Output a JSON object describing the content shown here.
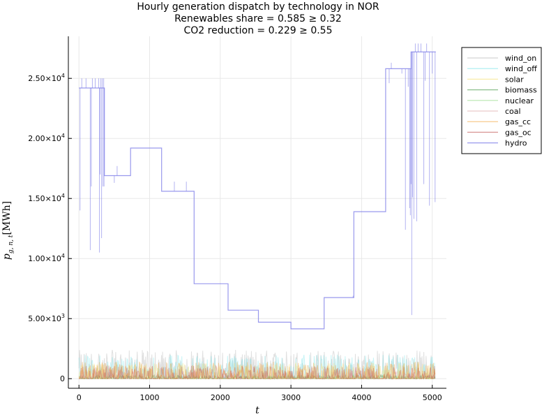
{
  "chart_data": {
    "type": "line",
    "title": [
      "Hourly generation dispatch by technology in NOR",
      "Renewables share = 0.585 ≥ 0.32",
      "CO2 reduction = 0.229 ≥ 0.55"
    ],
    "xlabel": "t",
    "ylabel_main": "p",
    "ylabel_sub": "g, n, t",
    "ylabel_unit": "[MWh]",
    "xlim": [
      -150,
      5200
    ],
    "ylim": [
      -800,
      28500
    ],
    "xticks": [
      0,
      1000,
      2000,
      3000,
      4000,
      5000
    ],
    "xtick_labels": [
      "0",
      "1000",
      "2000",
      "3000",
      "4000",
      "5000"
    ],
    "yticks": [
      0,
      5000,
      10000,
      15000,
      20000,
      25000
    ],
    "ytick_labels": [
      {
        "base": "0",
        "exp": ""
      },
      {
        "base": "5.00×10",
        "exp": "3"
      },
      {
        "base": "1.00×10",
        "exp": "4"
      },
      {
        "base": "1.50×10",
        "exp": "4"
      },
      {
        "base": "2.00×10",
        "exp": "4"
      },
      {
        "base": "2.50×10",
        "exp": "4"
      }
    ],
    "grid": true,
    "legend_position": "outer-top-right",
    "series": [
      {
        "name": "wind_on",
        "color": "#c7c7c7",
        "opacity": 0.55,
        "kind": "noise",
        "base": 200,
        "amp": 2200,
        "max": 2500
      },
      {
        "name": "wind_off",
        "color": "#5fe0e6",
        "opacity": 0.35,
        "kind": "noise",
        "base": 100,
        "amp": 1900,
        "max": 2300
      },
      {
        "name": "solar",
        "color": "#f5e07a",
        "opacity": 0.45,
        "kind": "noise",
        "base": 0,
        "amp": 1300,
        "max": 1500
      },
      {
        "name": "biomass",
        "color": "#2e8b2e",
        "opacity": 0.35,
        "kind": "noise",
        "base": 0,
        "amp": 300,
        "max": 400
      },
      {
        "name": "nuclear",
        "color": "#7fd36b",
        "opacity": 0.35,
        "kind": "noise",
        "base": 0,
        "amp": 200,
        "max": 250
      },
      {
        "name": "coal",
        "color": "#d9a0a0",
        "opacity": 0.35,
        "kind": "noise",
        "base": 0,
        "amp": 600,
        "max": 800
      },
      {
        "name": "gas_cc",
        "color": "#f2a43a",
        "opacity": 0.45,
        "kind": "noise",
        "base": 0,
        "amp": 1400,
        "max": 1600
      },
      {
        "name": "gas_oc",
        "color": "#c0504d",
        "opacity": 0.4,
        "kind": "noise",
        "base": 0,
        "amp": 1100,
        "max": 1200
      },
      {
        "name": "hydro",
        "color": "#8080e8",
        "opacity": 0.6,
        "kind": "steps",
        "steps": [
          {
            "x0": 0,
            "x1": 360,
            "y": 24200
          },
          {
            "x0": 360,
            "x1": 730,
            "y": 16900
          },
          {
            "x0": 730,
            "x1": 1170,
            "y": 19200
          },
          {
            "x0": 1170,
            "x1": 1630,
            "y": 15600
          },
          {
            "x0": 1630,
            "x1": 2110,
            "y": 7900
          },
          {
            "x0": 2110,
            "x1": 2540,
            "y": 5700
          },
          {
            "x0": 2540,
            "x1": 3000,
            "y": 4700
          },
          {
            "x0": 3000,
            "x1": 3470,
            "y": 4150
          },
          {
            "x0": 3470,
            "x1": 3890,
            "y": 6750
          },
          {
            "x0": 3890,
            "x1": 4340,
            "y": 13900
          },
          {
            "x0": 4340,
            "x1": 4700,
            "y": 25800
          },
          {
            "x0": 4700,
            "x1": 5050,
            "y": 27200
          }
        ],
        "spikes": [
          [
            15,
            14000
          ],
          [
            40,
            25000
          ],
          [
            100,
            25000
          ],
          [
            160,
            10700
          ],
          [
            175,
            16000
          ],
          [
            190,
            25000
          ],
          [
            230,
            25000
          ],
          [
            280,
            25000
          ],
          [
            290,
            10500
          ],
          [
            300,
            17000
          ],
          [
            310,
            25000
          ],
          [
            320,
            11700
          ],
          [
            330,
            25000
          ],
          [
            340,
            16000
          ],
          [
            350,
            25000
          ],
          [
            355,
            16000
          ],
          [
            500,
            16300
          ],
          [
            540,
            17700
          ],
          [
            1350,
            16400
          ],
          [
            1520,
            16400
          ],
          [
            3880,
            6900
          ],
          [
            4390,
            24600
          ],
          [
            4420,
            26300
          ],
          [
            4570,
            25400
          ],
          [
            4620,
            12400
          ],
          [
            4660,
            24300
          ],
          [
            4680,
            14200
          ],
          [
            4690,
            13600
          ],
          [
            4700,
            16200
          ],
          [
            4710,
            5300
          ],
          [
            4720,
            15100
          ],
          [
            4740,
            13300
          ],
          [
            4760,
            27900
          ],
          [
            4780,
            13100
          ],
          [
            4800,
            27900
          ],
          [
            4840,
            27900
          ],
          [
            4880,
            16200
          ],
          [
            4900,
            24800
          ],
          [
            4920,
            27900
          ],
          [
            4960,
            14400
          ],
          [
            5000,
            25400
          ],
          [
            5020,
            27200
          ],
          [
            5040,
            14700
          ]
        ]
      }
    ]
  }
}
